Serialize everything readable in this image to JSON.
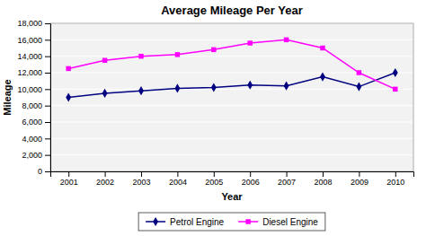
{
  "chart_data": {
    "type": "line",
    "title": "Average Mileage Per Year",
    "x_label": "Year",
    "y_label": "Mileage",
    "x": [
      2001,
      2002,
      2003,
      2004,
      2005,
      2006,
      2007,
      2008,
      2009,
      2010
    ],
    "series": [
      {
        "name": "Petrol Engine",
        "color": "#000080",
        "marker": "diamond",
        "line_style": "solid",
        "values": [
          9000,
          9500,
          9800,
          10100,
          10200,
          10500,
          10400,
          11500,
          10300,
          12000
        ]
      },
      {
        "name": "Diesel Engine",
        "color": "#FF00FF",
        "marker": "square",
        "line_style": "solid",
        "values": [
          12500,
          13500,
          14000,
          14200,
          14800,
          15600,
          16000,
          15000,
          12000,
          10000
        ]
      }
    ],
    "xlim": [
      2000.5,
      2010.5
    ],
    "xticks": [
      2001,
      2002,
      2003,
      2004,
      2005,
      2006,
      2007,
      2008,
      2009,
      2010
    ],
    "ylim": [
      0,
      18000
    ],
    "yticks": [
      0,
      {
        "value": 2000,
        "label": "2,000"
      },
      {
        "value": 4000,
        "label": "4,000"
      },
      {
        "value": 6000,
        "label": "6,000"
      },
      {
        "value": 8000,
        "label": "8,000"
      },
      {
        "value": 10000,
        "label": "10,000"
      },
      {
        "value": 12000,
        "label": "12,000"
      },
      {
        "value": 14000,
        "label": "14,000"
      },
      {
        "value": 16000,
        "label": "16,000"
      },
      {
        "value": 18000,
        "label": "18,000"
      }
    ],
    "grid": true,
    "legend": "bottom"
  }
}
